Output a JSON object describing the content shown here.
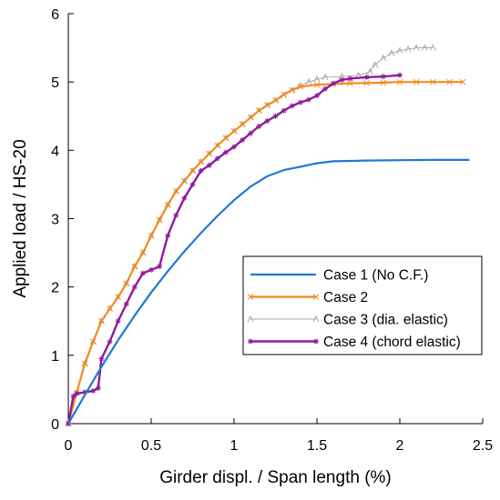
{
  "chart_data": {
    "type": "line",
    "title": "",
    "xlabel": "Girder displ. / Span length (%)",
    "ylabel": "Applied load / HS-20",
    "xlim": [
      0,
      2.5
    ],
    "ylim": [
      0,
      6
    ],
    "xticks": [
      "0",
      "0.5",
      "1",
      "1.5",
      "2",
      "2.5"
    ],
    "yticks": [
      "0",
      "1",
      "2",
      "3",
      "4",
      "5",
      "6"
    ],
    "grid": false,
    "legend_position": "center-right",
    "series": [
      {
        "name": "Case 1 (No C.F.)",
        "color": "#1f78d6",
        "marker": "none",
        "x": [
          0,
          0.1,
          0.2,
          0.3,
          0.4,
          0.5,
          0.6,
          0.7,
          0.8,
          0.9,
          1.0,
          1.1,
          1.2,
          1.3,
          1.4,
          1.5,
          1.6,
          1.8,
          2.0,
          2.2,
          2.42
        ],
        "y": [
          0,
          0.42,
          0.83,
          1.22,
          1.58,
          1.92,
          2.23,
          2.52,
          2.79,
          3.04,
          3.27,
          3.47,
          3.62,
          3.71,
          3.76,
          3.81,
          3.84,
          3.85,
          3.855,
          3.86,
          3.86
        ]
      },
      {
        "name": "Case 2",
        "color": "#f28a1e",
        "marker": "x",
        "x": [
          0,
          0.05,
          0.1,
          0.15,
          0.2,
          0.25,
          0.3,
          0.35,
          0.4,
          0.45,
          0.5,
          0.55,
          0.6,
          0.65,
          0.7,
          0.75,
          0.8,
          0.85,
          0.9,
          0.95,
          1.0,
          1.05,
          1.1,
          1.15,
          1.2,
          1.25,
          1.3,
          1.35,
          1.4,
          1.5,
          1.6,
          1.7,
          1.8,
          1.9,
          2.0,
          2.1,
          2.2,
          2.3,
          2.38
        ],
        "y": [
          0,
          0.45,
          0.88,
          1.2,
          1.5,
          1.68,
          1.85,
          2.05,
          2.3,
          2.5,
          2.75,
          2.98,
          3.2,
          3.4,
          3.55,
          3.7,
          3.83,
          3.95,
          4.07,
          4.18,
          4.28,
          4.38,
          4.48,
          4.58,
          4.66,
          4.73,
          4.82,
          4.88,
          4.93,
          4.96,
          4.97,
          4.98,
          4.985,
          4.99,
          5.0,
          5.0,
          5.0,
          5.0,
          5.0
        ]
      },
      {
        "name": "Case 3 (dia. elastic)",
        "color": "#a6a6a6",
        "marker": "^",
        "x": [
          0,
          0.05,
          0.1,
          0.15,
          0.2,
          0.25,
          0.3,
          0.35,
          0.4,
          0.45,
          0.5,
          0.55,
          0.6,
          0.65,
          0.7,
          0.75,
          0.8,
          0.85,
          0.9,
          0.95,
          1.0,
          1.05,
          1.1,
          1.15,
          1.2,
          1.25,
          1.3,
          1.35,
          1.4,
          1.45,
          1.5,
          1.55,
          1.65,
          1.75,
          1.82,
          1.85,
          1.9,
          1.95,
          2.0,
          2.05,
          2.1,
          2.15,
          2.2
        ],
        "y": [
          0,
          0.45,
          0.88,
          1.2,
          1.5,
          1.68,
          1.85,
          2.05,
          2.3,
          2.5,
          2.75,
          2.98,
          3.2,
          3.4,
          3.55,
          3.7,
          3.83,
          3.95,
          4.07,
          4.18,
          4.28,
          4.38,
          4.48,
          4.58,
          4.66,
          4.73,
          4.8,
          4.88,
          4.95,
          5.0,
          5.04,
          5.07,
          5.08,
          5.1,
          5.15,
          5.25,
          5.35,
          5.42,
          5.46,
          5.48,
          5.5,
          5.5,
          5.5
        ]
      },
      {
        "name": "Case 4 (chord elastic)",
        "color": "#8e1a9e",
        "marker": "*",
        "x": [
          0,
          0.03,
          0.05,
          0.1,
          0.15,
          0.18,
          0.2,
          0.25,
          0.3,
          0.35,
          0.4,
          0.45,
          0.5,
          0.55,
          0.6,
          0.65,
          0.7,
          0.75,
          0.8,
          0.85,
          0.9,
          0.95,
          1.0,
          1.05,
          1.1,
          1.15,
          1.2,
          1.25,
          1.3,
          1.35,
          1.4,
          1.45,
          1.5,
          1.55,
          1.6,
          1.65,
          1.7,
          1.8,
          1.9,
          2.0
        ],
        "y": [
          0,
          0.4,
          0.44,
          0.46,
          0.48,
          0.52,
          0.95,
          1.2,
          1.5,
          1.75,
          2.0,
          2.2,
          2.25,
          2.3,
          2.75,
          3.05,
          3.3,
          3.5,
          3.7,
          3.78,
          3.88,
          3.97,
          4.05,
          4.15,
          4.25,
          4.35,
          4.43,
          4.5,
          4.58,
          4.65,
          4.7,
          4.74,
          4.8,
          4.9,
          4.98,
          5.03,
          5.05,
          5.07,
          5.08,
          5.1
        ]
      }
    ]
  }
}
